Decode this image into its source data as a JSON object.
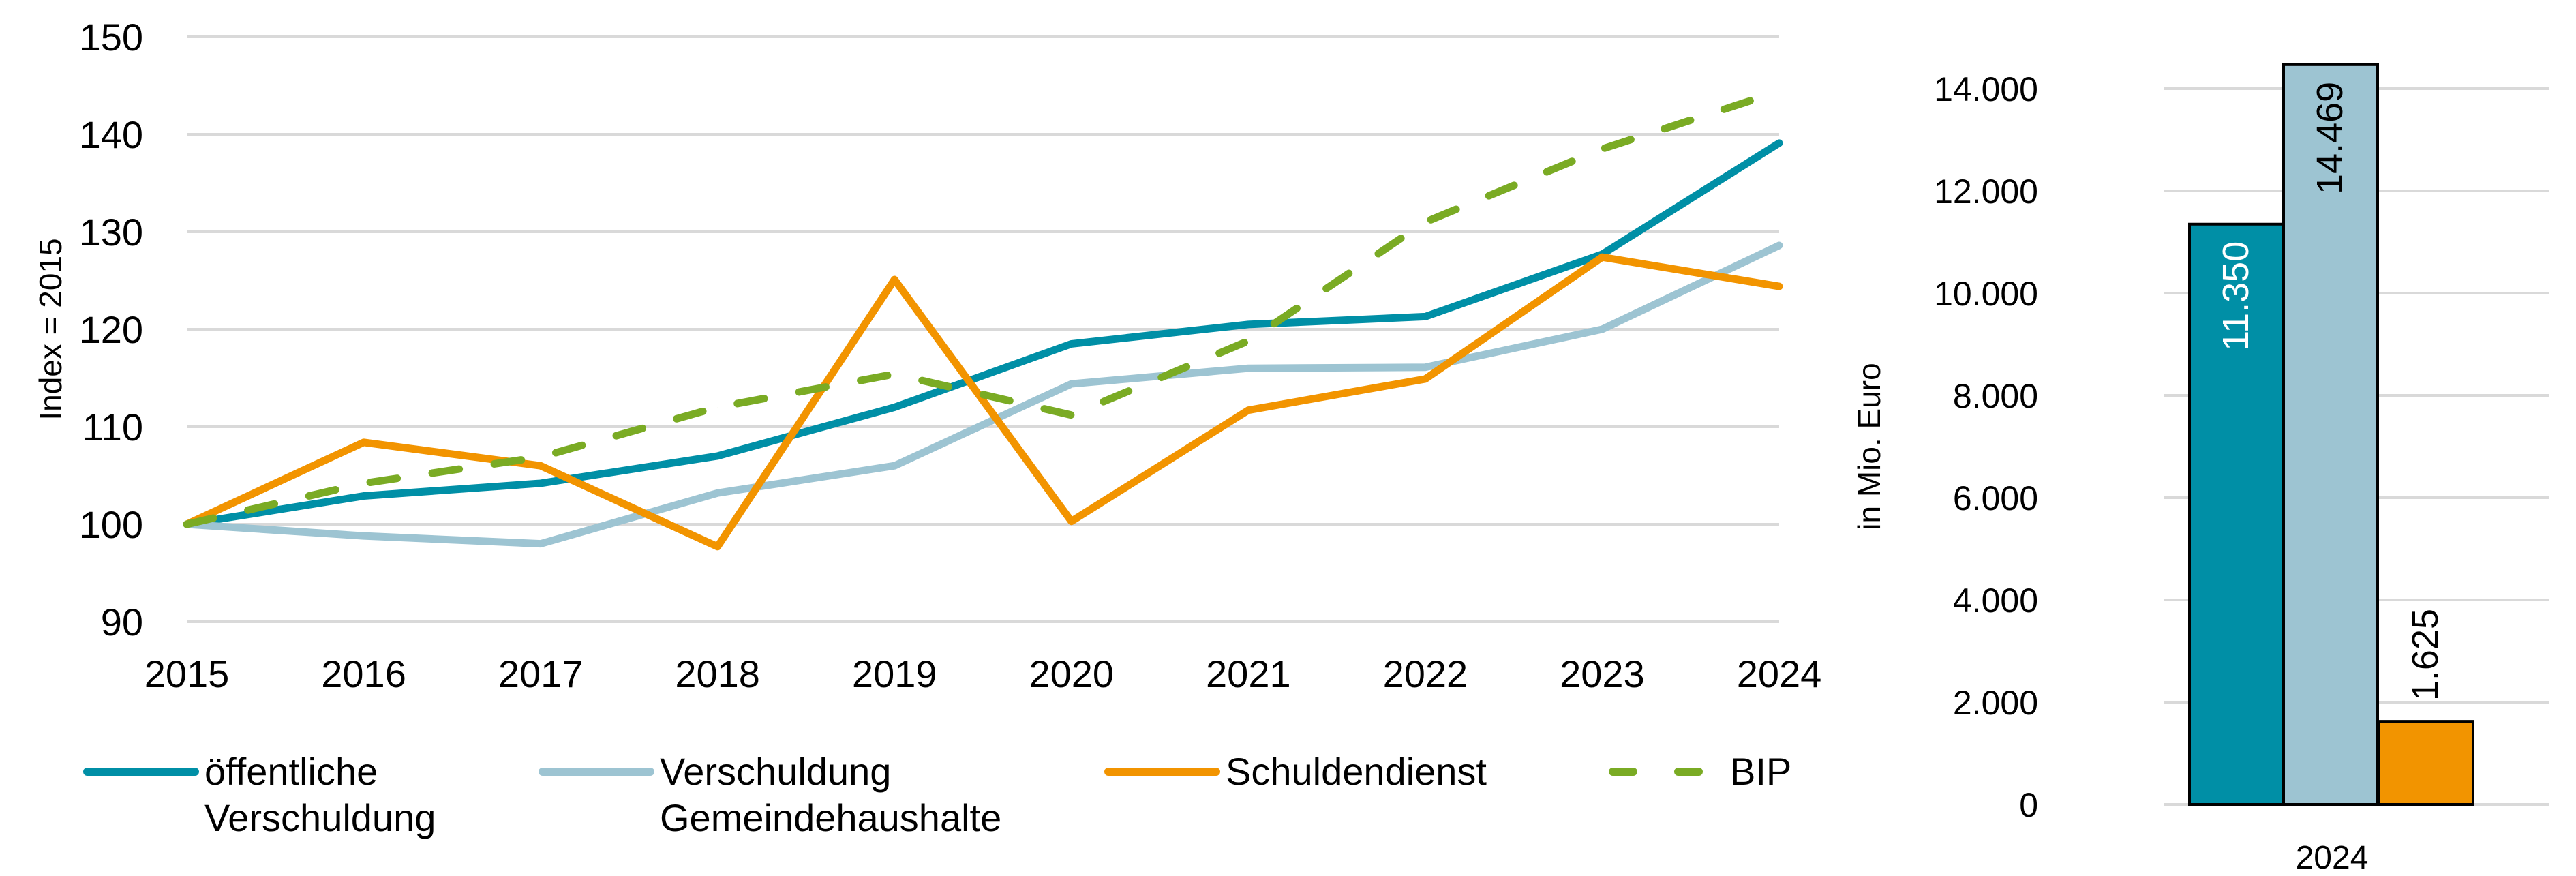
{
  "chart_data": [
    {
      "type": "line",
      "title": "",
      "xlabel": "",
      "ylabel": "Index = 2015",
      "ylim": [
        90,
        150
      ],
      "yticks": [
        90,
        100,
        110,
        120,
        130,
        140,
        150
      ],
      "grid": true,
      "x": [
        "2015",
        "2016",
        "2017",
        "2018",
        "2019",
        "2020",
        "2021",
        "2022",
        "2023",
        "2024"
      ],
      "series": [
        {
          "name": "öffentliche Verschuldung",
          "legend_lines": [
            "öffentliche",
            "Verschuldung"
          ],
          "color": "#008FA6",
          "dashed": false,
          "values": [
            100,
            102.9,
            104.2,
            107.0,
            112.0,
            118.5,
            120.5,
            121.3,
            127.7,
            139.1
          ]
        },
        {
          "name": "Verschuldung Gemeindehaushalte",
          "legend_lines": [
            "Verschuldung",
            "Gemeindehaushalte"
          ],
          "color": "#9DC4D2",
          "dashed": false,
          "values": [
            100,
            98.8,
            98.0,
            103.2,
            106.0,
            114.4,
            116.0,
            116.1,
            120.0,
            128.6
          ]
        },
        {
          "name": "Schuldendienst",
          "legend_lines": [
            "Schuldendienst"
          ],
          "color": "#F29400",
          "dashed": false,
          "values": [
            100,
            108.4,
            106.0,
            97.7,
            125.1,
            100.3,
            111.7,
            114.9,
            127.4,
            124.4
          ]
        },
        {
          "name": "BIP",
          "legend_lines": [
            "BIP"
          ],
          "color": "#7AAB24",
          "dashed": true,
          "values": [
            100,
            104.2,
            106.9,
            112.0,
            115.4,
            111.2,
            118.8,
            131.0,
            138.5,
            144.4
          ]
        }
      ],
      "legend_position": "bottom"
    },
    {
      "type": "bar",
      "title": "",
      "xlabel": "",
      "ylabel": "in Mio. Euro",
      "ylim": [
        0,
        14000
      ],
      "yticks": [
        0,
        2000,
        4000,
        6000,
        8000,
        10000,
        12000,
        14000
      ],
      "ytick_labels": [
        "0",
        "2.000",
        "4.000",
        "6.000",
        "8.000",
        "10.000",
        "12.000",
        "14.000"
      ],
      "grid": true,
      "categories": [
        "2024"
      ],
      "series": [
        {
          "name": "öffentliche Verschuldung",
          "color": "#008FA6",
          "values": [
            11350
          ],
          "label": "11.350",
          "label_color": "#ffffff",
          "label_inside": true
        },
        {
          "name": "Verschuldung Gemeindehaushalte",
          "color": "#9DC4D2",
          "values": [
            14469
          ],
          "label": "14.469",
          "label_color": "#000000",
          "label_inside": true
        },
        {
          "name": "Schuldendienst",
          "color": "#F29400",
          "values": [
            1625
          ],
          "label": "1.625",
          "label_color": "#000000",
          "label_inside": false
        }
      ]
    }
  ]
}
